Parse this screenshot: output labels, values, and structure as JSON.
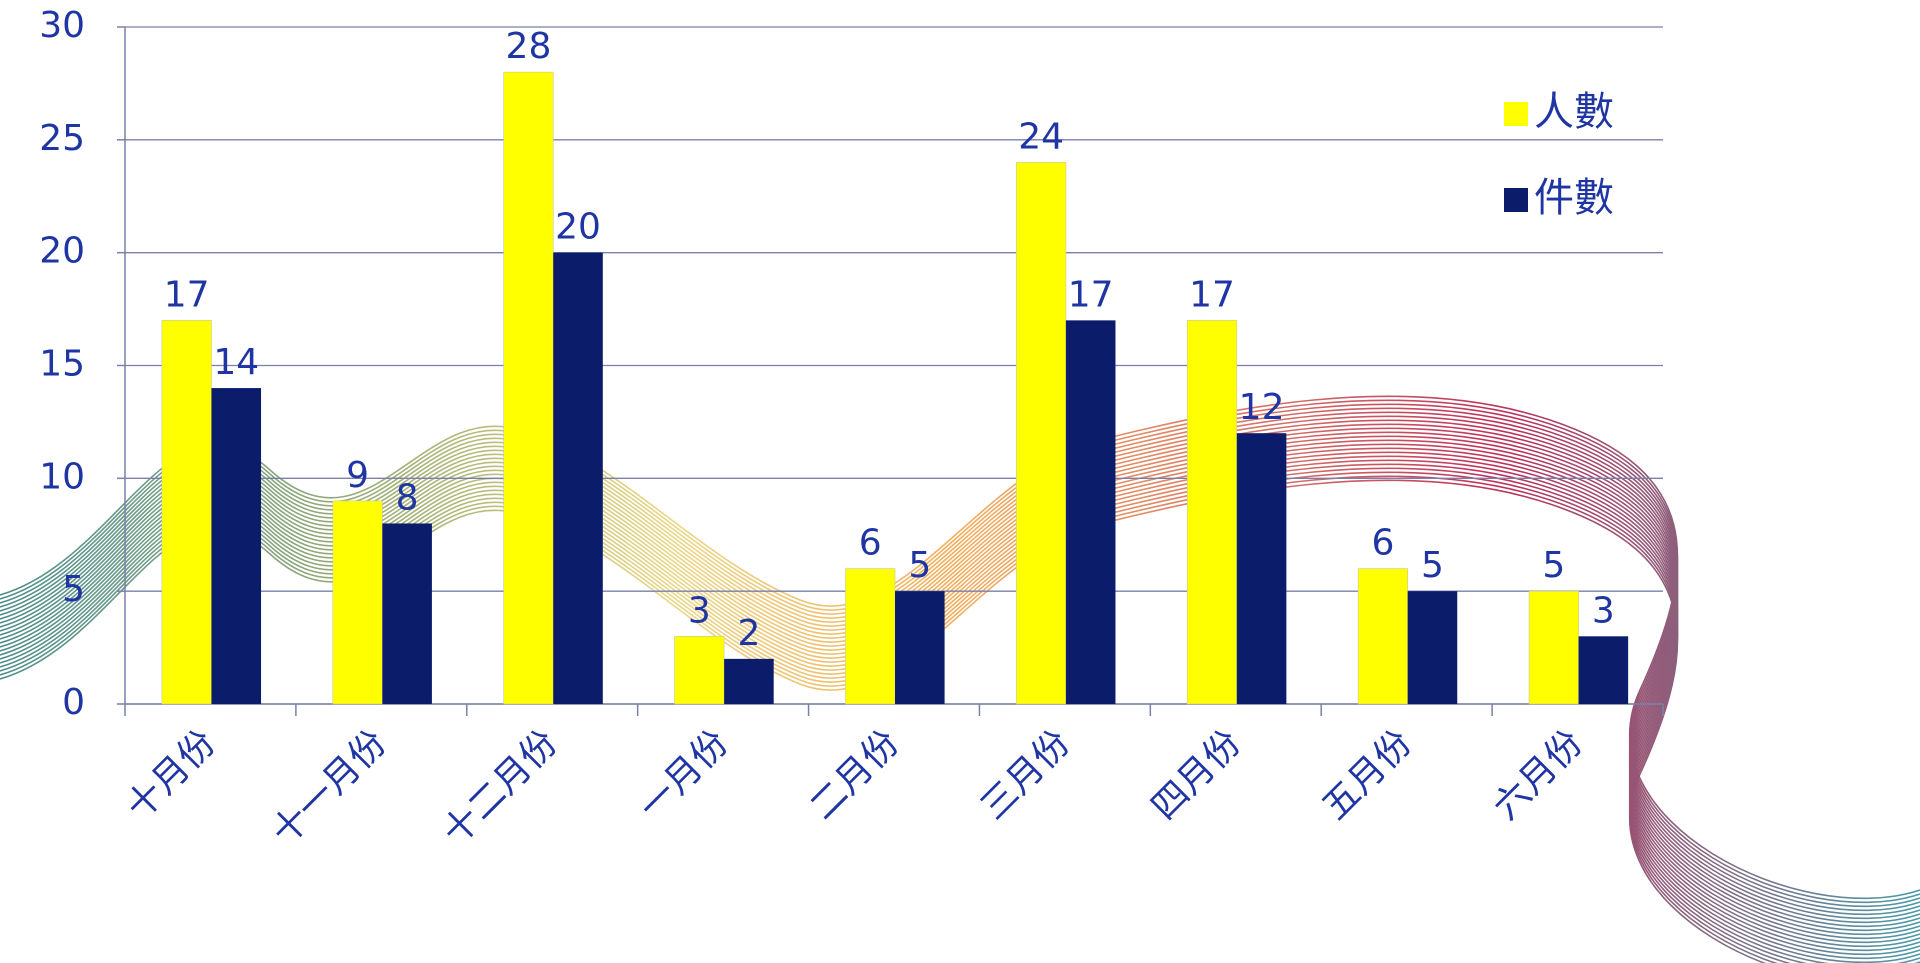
{
  "chart_data": {
    "type": "bar",
    "categories": [
      "十月份",
      "十一月份",
      "十二月份",
      "一月份",
      "二月份",
      "三月份",
      "四月份",
      "五月份",
      "六月份"
    ],
    "series": [
      {
        "name": "人數",
        "color": "#ffff00",
        "values": [
          17,
          9,
          28,
          3,
          6,
          24,
          17,
          6,
          5
        ]
      },
      {
        "name": "件數",
        "color": "#0b1c6b",
        "values": [
          14,
          8,
          20,
          2,
          5,
          17,
          12,
          5,
          3
        ]
      }
    ],
    "ylim": [
      0,
      30
    ],
    "yticks": [
      0,
      5,
      10,
      15,
      20,
      25,
      30
    ],
    "grid": true,
    "legend": "top-right"
  }
}
